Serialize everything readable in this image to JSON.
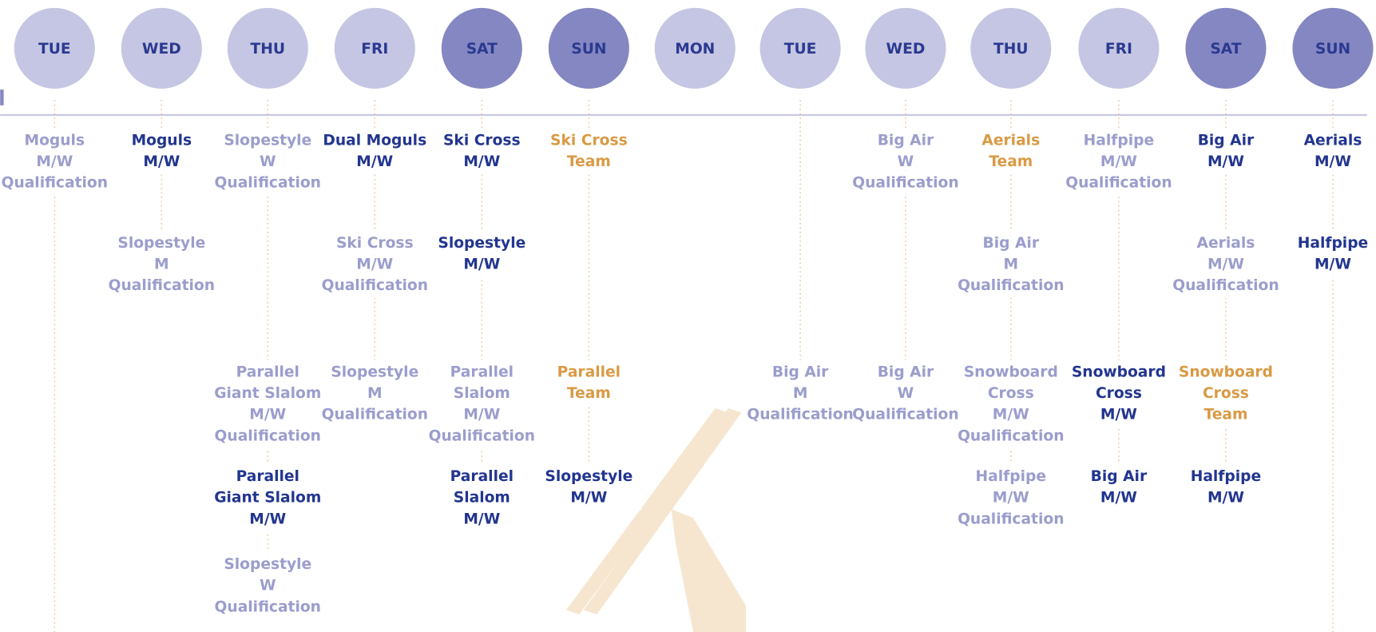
{
  "days": [
    {
      "label": "TUE",
      "weekend": false,
      "events": [
        {
          "lines": [
            "Moguls",
            "M/W",
            "Qualification"
          ],
          "color": "#9b9dcc"
        }
      ]
    },
    {
      "label": "WED",
      "weekend": false,
      "events": [
        {
          "lines": [
            "Moguls",
            "M/W"
          ],
          "color": "#22358f"
        },
        {
          "lines": [
            "Slopestyle",
            "M",
            "Qualification"
          ],
          "color": "#9b9dcc"
        }
      ]
    },
    {
      "label": "THU",
      "weekend": false,
      "events": [
        {
          "lines": [
            "Slopestyle",
            "W",
            "Qualification"
          ],
          "color": "#9b9dcc"
        },
        {
          "lines": [
            "Parallel",
            "Giant Slalom",
            "M/W",
            "Qualification"
          ],
          "color": "#9b9dcc"
        },
        {
          "lines": [
            "Parallel",
            "Giant Slalom",
            "M/W"
          ],
          "color": "#22358f"
        },
        {
          "lines": [
            "Slopestyle",
            "W",
            "Qualification"
          ],
          "color": "#9b9dcc"
        }
      ]
    },
    {
      "label": "FRI",
      "weekend": false,
      "events": [
        {
          "lines": [
            "Dual Moguls",
            "M/W"
          ],
          "color": "#22358f"
        },
        {
          "lines": [
            "Ski Cross",
            "M/W",
            "Qualification"
          ],
          "color": "#9b9dcc"
        },
        {
          "lines": [
            "Slopestyle",
            "M",
            "Qualification"
          ],
          "color": "#9b9dcc"
        }
      ]
    },
    {
      "label": "SAT",
      "weekend": true,
      "events": [
        {
          "lines": [
            "Ski Cross",
            "M/W"
          ],
          "color": "#22358f"
        },
        {
          "lines": [
            "Slopestyle",
            "M/W"
          ],
          "color": "#22358f"
        },
        {
          "lines": [
            "Parallel",
            "Slalom",
            "M/W",
            "Qualification"
          ],
          "color": "#9b9dcc"
        },
        {
          "lines": [
            "Parallel",
            "Slalom",
            "M/W"
          ],
          "color": "#22358f"
        }
      ]
    },
    {
      "label": "SUN",
      "weekend": true,
      "events": [
        {
          "lines": [
            "Ski Cross",
            "Team"
          ],
          "color": "#d99a44"
        },
        {
          "lines": [
            "Parallel",
            "Team"
          ],
          "color": "#d99a44"
        },
        {
          "lines": [
            "Slopestyle",
            "M/W"
          ],
          "color": "#22358f"
        }
      ]
    },
    {
      "label": "MON",
      "weekend": false,
      "events": []
    },
    {
      "label": "TUE",
      "weekend": false,
      "events": [
        {
          "lines": [
            "Big Air",
            "M",
            "Qualification"
          ],
          "color": "#9b9dcc"
        }
      ]
    },
    {
      "label": "WED",
      "weekend": false,
      "events": [
        {
          "lines": [
            "Big Air",
            "W",
            "Qualification"
          ],
          "color": "#9b9dcc"
        },
        {
          "lines": [
            "Big Air",
            "W",
            "Qualification"
          ],
          "color": "#9b9dcc"
        }
      ]
    },
    {
      "label": "THU",
      "weekend": false,
      "events": [
        {
          "lines": [
            "Aerials",
            "Team"
          ],
          "color": "#d99a44"
        },
        {
          "lines": [
            "Big Air",
            "M",
            "Qualification"
          ],
          "color": "#9b9dcc"
        },
        {
          "lines": [
            "Snowboard",
            "Cross",
            "M/W",
            "Qualification"
          ],
          "color": "#9b9dcc"
        },
        {
          "lines": [
            "Halfpipe",
            "M/W",
            "Qualification"
          ],
          "color": "#9b9dcc"
        }
      ]
    },
    {
      "label": "FRI",
      "weekend": false,
      "events": [
        {
          "lines": [
            "Halfpipe",
            "M/W",
            "Qualification"
          ],
          "color": "#9b9dcc"
        },
        {
          "lines": [
            "Snowboard",
            "Cross",
            "M/W"
          ],
          "color": "#22358f"
        },
        {
          "lines": [
            "Big Air",
            "M/W"
          ],
          "color": "#22358f"
        }
      ]
    },
    {
      "label": "SAT",
      "weekend": true,
      "events": [
        {
          "lines": [
            "Big Air",
            "M/W"
          ],
          "color": "#22358f"
        },
        {
          "lines": [
            "Aerials",
            "M/W",
            "Qualification"
          ],
          "color": "#9b9dcc"
        },
        {
          "lines": [
            "Snowboard",
            "Cross",
            "Team"
          ],
          "color": "#d99a44"
        },
        {
          "lines": [
            "Halfpipe",
            "M/W"
          ],
          "color": "#22358f"
        }
      ]
    },
    {
      "label": "SUN",
      "weekend": true,
      "events": [
        {
          "lines": [
            "Aerials",
            "M/W"
          ],
          "color": "#22358f"
        },
        {
          "lines": [
            "Halfpipe",
            "M/W"
          ],
          "color": "#22358f"
        }
      ]
    }
  ]
}
